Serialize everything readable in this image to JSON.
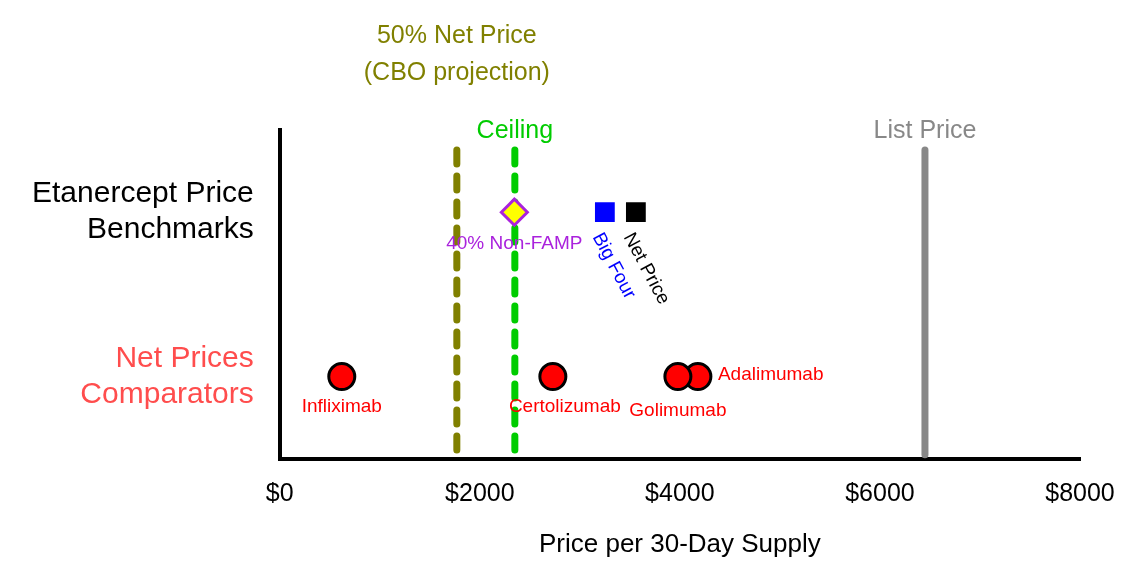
{
  "chart_data": {
    "type": "scatter",
    "orientation": "horizontal",
    "xlabel": "Price per 30-Day Supply",
    "categories": [
      "Etanercept Price Benchmarks",
      "Net Prices Comparators"
    ],
    "xlim": [
      0,
      8000
    ],
    "xticks": [
      {
        "value": 0,
        "label": "$0"
      },
      {
        "value": 2000,
        "label": "$2000"
      },
      {
        "value": 4000,
        "label": "$4000"
      },
      {
        "value": 6000,
        "label": "$6000"
      },
      {
        "value": 8000,
        "label": "$8000"
      }
    ],
    "grid": false,
    "legend": false,
    "series": [
      {
        "name": "40% Non-FAMP",
        "color": "#aa22dd",
        "marker": "diamond",
        "values": [
          2345,
          null
        ]
      },
      {
        "name": "Big Four",
        "color": "#0000ff",
        "marker": "square",
        "values": [
          3250,
          null
        ]
      },
      {
        "name": "Net Price",
        "color": "#000000",
        "marker": "square",
        "values": [
          3560,
          null
        ]
      },
      {
        "name": "Infliximab",
        "color": "#ff0000",
        "marker": "circle",
        "values": [
          null,
          620
        ]
      },
      {
        "name": "Certolizumab",
        "color": "#ff0000",
        "marker": "circle",
        "values": [
          null,
          2730
        ]
      },
      {
        "name": "Golimumab",
        "color": "#ff0000",
        "marker": "circle",
        "values": [
          null,
          3980
        ]
      },
      {
        "name": "Adalimumab",
        "color": "#ff0000",
        "marker": "circle",
        "values": [
          null,
          4180
        ]
      }
    ],
    "ref_lines": [
      {
        "axis": "x",
        "value": 1770,
        "label": "50% Net Price (CBO projection)",
        "color": "#808000",
        "line_style": "dashed"
      },
      {
        "axis": "x",
        "value": 2350,
        "label": "Ceiling",
        "color": "#00cc00",
        "line_style": "dashed"
      },
      {
        "axis": "x",
        "value": 6450,
        "label": "List Price",
        "color": "#888888",
        "line_style": "solid"
      }
    ]
  }
}
